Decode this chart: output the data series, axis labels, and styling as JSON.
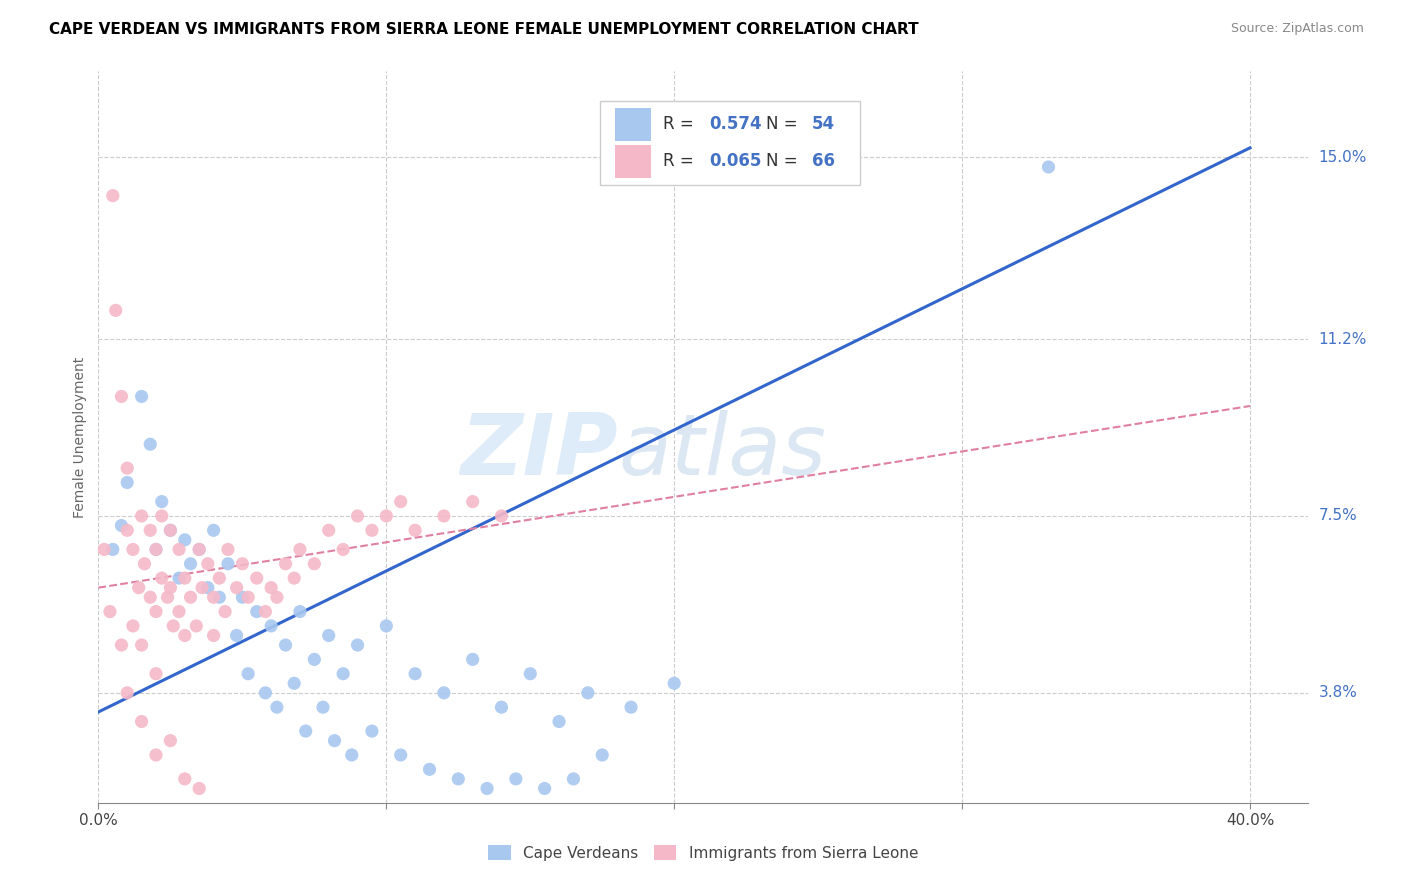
{
  "title": "CAPE VERDEAN VS IMMIGRANTS FROM SIERRA LEONE FEMALE UNEMPLOYMENT CORRELATION CHART",
  "source": "Source: ZipAtlas.com",
  "ylabel": "Female Unemployment",
  "ytick_labels": [
    "3.8%",
    "7.5%",
    "11.2%",
    "15.0%"
  ],
  "ytick_values": [
    0.038,
    0.075,
    0.112,
    0.15
  ],
  "xtick_vals": [
    0.0,
    0.1,
    0.2,
    0.3,
    0.4
  ],
  "xlim": [
    0.0,
    0.42
  ],
  "ylim": [
    0.015,
    0.168
  ],
  "color_blue": "#a8c8f0",
  "color_pink": "#f5b8c8",
  "line_blue": "#3366cc",
  "line_pink": "#f5b8c8",
  "watermark_zip": "ZIP",
  "watermark_atlas": "atlas",
  "blue_line_x": [
    0.0,
    0.4
  ],
  "blue_line_y": [
    0.034,
    0.152
  ],
  "pink_line_x": [
    0.0,
    0.4
  ],
  "pink_line_y": [
    0.06,
    0.098
  ],
  "blue_scatter_x": [
    0.005,
    0.008,
    0.01,
    0.015,
    0.018,
    0.02,
    0.022,
    0.025,
    0.028,
    0.03,
    0.032,
    0.035,
    0.038,
    0.04,
    0.042,
    0.045,
    0.048,
    0.05,
    0.052,
    0.055,
    0.058,
    0.06,
    0.062,
    0.065,
    0.068,
    0.07,
    0.072,
    0.075,
    0.078,
    0.08,
    0.082,
    0.085,
    0.088,
    0.09,
    0.095,
    0.1,
    0.105,
    0.11,
    0.115,
    0.12,
    0.125,
    0.13,
    0.135,
    0.14,
    0.145,
    0.15,
    0.155,
    0.16,
    0.165,
    0.17,
    0.175,
    0.185,
    0.2,
    0.33
  ],
  "blue_scatter_y": [
    0.068,
    0.073,
    0.082,
    0.1,
    0.09,
    0.068,
    0.078,
    0.072,
    0.062,
    0.07,
    0.065,
    0.068,
    0.06,
    0.072,
    0.058,
    0.065,
    0.05,
    0.058,
    0.042,
    0.055,
    0.038,
    0.052,
    0.035,
    0.048,
    0.04,
    0.055,
    0.03,
    0.045,
    0.035,
    0.05,
    0.028,
    0.042,
    0.025,
    0.048,
    0.03,
    0.052,
    0.025,
    0.042,
    0.022,
    0.038,
    0.02,
    0.045,
    0.018,
    0.035,
    0.02,
    0.042,
    0.018,
    0.032,
    0.02,
    0.038,
    0.025,
    0.035,
    0.04,
    0.148
  ],
  "pink_scatter_x": [
    0.002,
    0.004,
    0.005,
    0.006,
    0.008,
    0.008,
    0.01,
    0.01,
    0.012,
    0.012,
    0.014,
    0.015,
    0.015,
    0.016,
    0.018,
    0.018,
    0.02,
    0.02,
    0.02,
    0.022,
    0.022,
    0.024,
    0.025,
    0.025,
    0.026,
    0.028,
    0.028,
    0.03,
    0.03,
    0.032,
    0.034,
    0.035,
    0.036,
    0.038,
    0.04,
    0.04,
    0.042,
    0.044,
    0.045,
    0.048,
    0.05,
    0.052,
    0.055,
    0.058,
    0.06,
    0.062,
    0.065,
    0.068,
    0.07,
    0.075,
    0.08,
    0.085,
    0.09,
    0.095,
    0.1,
    0.105,
    0.11,
    0.12,
    0.13,
    0.14,
    0.01,
    0.015,
    0.02,
    0.025,
    0.03,
    0.035
  ],
  "pink_scatter_y": [
    0.068,
    0.055,
    0.142,
    0.118,
    0.1,
    0.048,
    0.072,
    0.085,
    0.068,
    0.052,
    0.06,
    0.075,
    0.048,
    0.065,
    0.072,
    0.058,
    0.068,
    0.055,
    0.042,
    0.075,
    0.062,
    0.058,
    0.072,
    0.06,
    0.052,
    0.068,
    0.055,
    0.062,
    0.05,
    0.058,
    0.052,
    0.068,
    0.06,
    0.065,
    0.058,
    0.05,
    0.062,
    0.055,
    0.068,
    0.06,
    0.065,
    0.058,
    0.062,
    0.055,
    0.06,
    0.058,
    0.065,
    0.062,
    0.068,
    0.065,
    0.072,
    0.068,
    0.075,
    0.072,
    0.075,
    0.078,
    0.072,
    0.075,
    0.078,
    0.075,
    0.038,
    0.032,
    0.025,
    0.028,
    0.02,
    0.018
  ]
}
